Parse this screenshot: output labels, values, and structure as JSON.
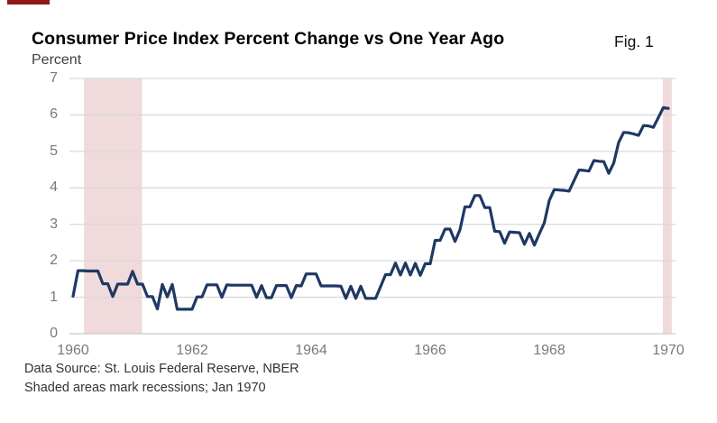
{
  "header": {
    "title": "Consumer Price Index Percent Change vs One Year Ago",
    "figure_label": "Fig. 1",
    "unit_label": "Percent"
  },
  "footer": {
    "source_line": "Data Source: St. Louis Federal Reserve, NBER",
    "note_line": "Shaded areas mark recessions; Jan 1970"
  },
  "colors": {
    "line": "#1F3864",
    "recession_band": "#F1DADB",
    "gridline": "#D9D9D9",
    "axis_line": "#C9C9C9",
    "tick_text": "#7A7A7A",
    "accent_bar": "#8E1B15"
  },
  "chart_data": {
    "type": "line",
    "title": "Consumer Price Index Percent Change vs One Year Ago",
    "xlabel": "",
    "ylabel": "Percent",
    "ylim": [
      0,
      7
    ],
    "yticks": [
      0,
      1,
      2,
      3,
      4,
      5,
      6,
      7
    ],
    "xtick_labels": [
      "1960",
      "1962",
      "1964",
      "1966",
      "1968",
      "1970"
    ],
    "x_start": "1960-01",
    "x_end": "1970-01",
    "frequency": "monthly",
    "grid": "horizontal",
    "legend_position": "none",
    "line_color": "#1F3864",
    "recession_band_color": "#F1DADB",
    "gridline_color": "#D9D9D9",
    "series": [
      {
        "name": "CPI percent change vs one year ago",
        "values": [
          1.03,
          1.73,
          1.73,
          1.72,
          1.72,
          1.72,
          1.37,
          1.37,
          1.02,
          1.36,
          1.36,
          1.36,
          1.71,
          1.36,
          1.36,
          1.02,
          1.02,
          0.68,
          1.35,
          1.01,
          1.35,
          0.67,
          0.67,
          0.67,
          0.67,
          1.01,
          1.01,
          1.34,
          1.34,
          1.34,
          1.0,
          1.34,
          1.33,
          1.33,
          1.33,
          1.33,
          1.33,
          1.0,
          1.32,
          0.99,
          0.99,
          1.32,
          1.32,
          1.32,
          0.99,
          1.32,
          1.31,
          1.64,
          1.64,
          1.64,
          1.31,
          1.31,
          1.31,
          1.31,
          1.3,
          0.97,
          1.3,
          0.97,
          1.3,
          0.97,
          0.97,
          0.97,
          1.29,
          1.62,
          1.62,
          1.94,
          1.61,
          1.94,
          1.61,
          1.93,
          1.6,
          1.92,
          1.92,
          2.56,
          2.56,
          2.87,
          2.87,
          2.53,
          2.85,
          3.48,
          3.48,
          3.79,
          3.79,
          3.46,
          3.46,
          2.81,
          2.8,
          2.48,
          2.79,
          2.78,
          2.77,
          2.45,
          2.75,
          2.43,
          2.74,
          3.04,
          3.65,
          3.95,
          3.94,
          3.93,
          3.91,
          4.2,
          4.49,
          4.48,
          4.46,
          4.75,
          4.73,
          4.72,
          4.4,
          4.68,
          5.25,
          5.52,
          5.51,
          5.48,
          5.44,
          5.71,
          5.7,
          5.66,
          5.93,
          6.2,
          6.18
        ]
      }
    ],
    "recession_bands": [
      {
        "label": "Apr 1960 - Feb 1961 recession",
        "start_month_index": 2.2,
        "end_month_index": 13.9
      },
      {
        "label": "Dec 1969 - Jan 1970 recession",
        "start_month_index": 118.9,
        "end_month_index": 120.7
      }
    ]
  }
}
